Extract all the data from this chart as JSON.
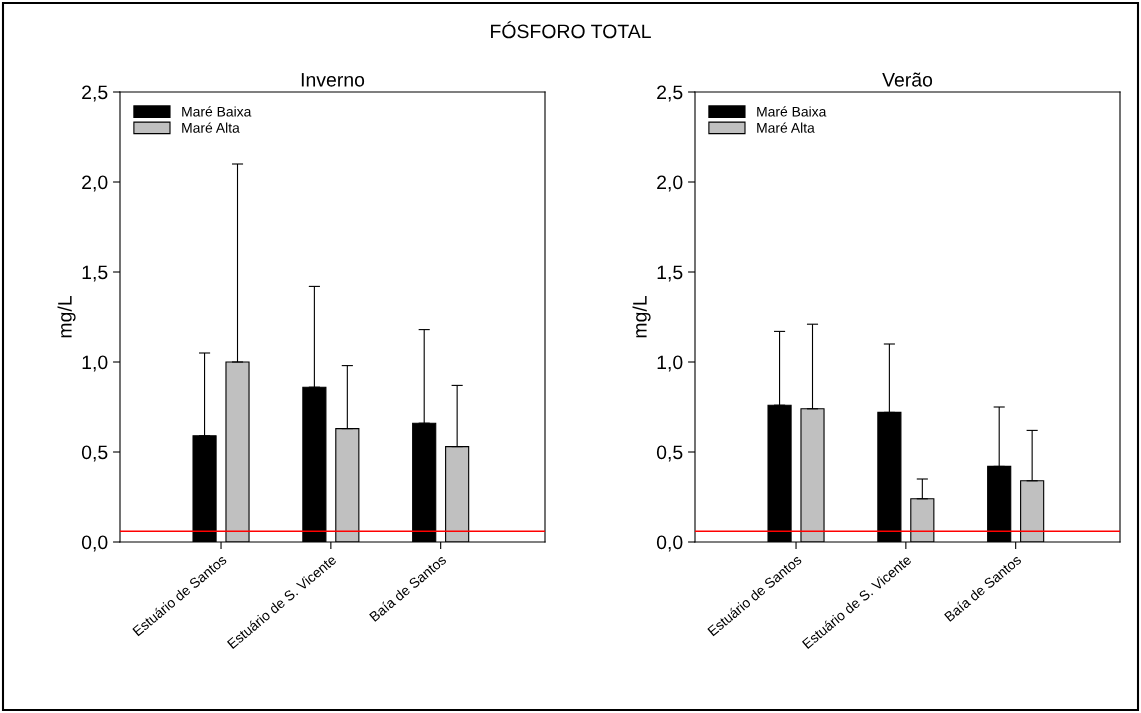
{
  "chart_data": [
    {
      "type": "bar",
      "title": "Inverno",
      "ylabel": "mg/L",
      "annotations": [
        "FÓSFORO TOTAL"
      ],
      "categories": [
        "Estuário de Santos",
        "Estuário de S. Vicente",
        "Baía de Santos"
      ],
      "series": [
        {
          "name": "Maré Baixa",
          "color": "#000000",
          "values": [
            0.59,
            0.86,
            0.66
          ],
          "errors": [
            [
              0.59,
              1.05
            ],
            [
              0.86,
              1.42
            ],
            [
              0.66,
              1.18
            ]
          ]
        },
        {
          "name": "Maré Alta",
          "color": "#c0c0c0",
          "values": [
            1.0,
            0.63,
            0.53
          ],
          "errors": [
            [
              1.0,
              2.1
            ],
            [
              0.63,
              0.98
            ],
            [
              0.53,
              0.87
            ]
          ]
        }
      ],
      "ylim": [
        0,
        2.5
      ],
      "yticks": [
        {
          "value": 0,
          "label": "0,0"
        },
        {
          "value": 0.5,
          "label": "0,5"
        },
        {
          "value": 1.0,
          "label": "1,0"
        },
        {
          "value": 1.5,
          "label": "1,5"
        },
        {
          "value": 2.0,
          "label": "2,0"
        },
        {
          "value": 2.5,
          "label": "2,5"
        }
      ],
      "ref_lines": [
        {
          "axis": "y",
          "value": 0.06,
          "color": "#ff0000"
        }
      ],
      "legend": "top left",
      "grid": false
    },
    {
      "type": "bar",
      "title": "Verão",
      "ylabel": "mg/L",
      "categories": [
        "Estuário de Santos",
        "Estuário de S. Vicente",
        "Baía de Santos"
      ],
      "series": [
        {
          "name": "Maré Baixa",
          "color": "#000000",
          "values": [
            0.76,
            0.72,
            0.42
          ],
          "errors": [
            [
              0.76,
              1.17
            ],
            [
              0.72,
              1.1
            ],
            [
              0.42,
              0.75
            ]
          ]
        },
        {
          "name": "Maré Alta",
          "color": "#c0c0c0",
          "values": [
            0.74,
            0.24,
            0.34
          ],
          "errors": [
            [
              0.74,
              1.21
            ],
            [
              0.24,
              0.35
            ],
            [
              0.34,
              0.62
            ]
          ]
        }
      ],
      "ylim": [
        0,
        2.5
      ],
      "yticks": [
        {
          "value": 0,
          "label": "0,0"
        },
        {
          "value": 0.5,
          "label": "0,5"
        },
        {
          "value": 1.0,
          "label": "1,0"
        },
        {
          "value": 1.5,
          "label": "1,5"
        },
        {
          "value": 2.0,
          "label": "2,0"
        },
        {
          "value": 2.5,
          "label": "2,5"
        }
      ],
      "ref_lines": [
        {
          "axis": "y",
          "value": 0.06,
          "color": "#ff0000"
        }
      ],
      "legend": "top left",
      "grid": false
    }
  ]
}
